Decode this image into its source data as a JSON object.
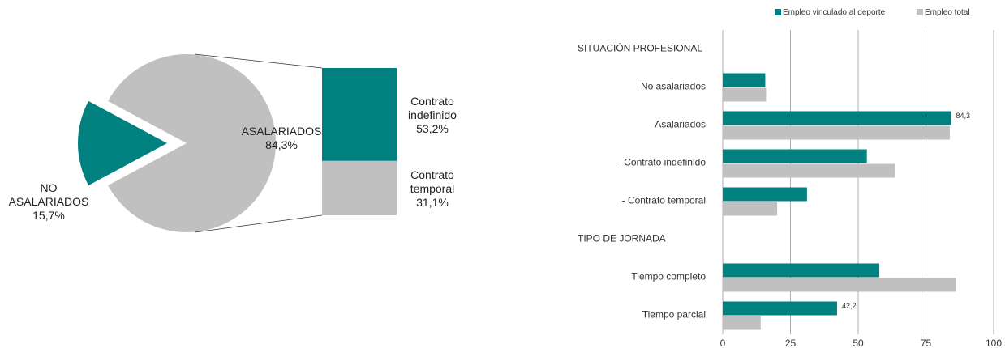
{
  "chart_data": [
    {
      "type": "pie",
      "categories": [
        "NO ASALARIADOS",
        "ASALARIADOS"
      ],
      "values": [
        15.7,
        84.3
      ],
      "value_labels": [
        "15,7%",
        "84,3%"
      ],
      "colors": [
        "#00807f",
        "#c0c0c0"
      ],
      "breakdown": {
        "categories": [
          "Contrato indefinido",
          "Contrato temporal"
        ],
        "values": [
          53.2,
          31.1
        ],
        "value_labels": [
          "53,2%",
          "31,1%"
        ],
        "colors": [
          "#00807f",
          "#c0c0c0"
        ]
      }
    },
    {
      "type": "hbar",
      "categories": [
        "SITUACIÓN PROFESIONAL",
        "No asalariados",
        "Asalariados",
        "- Contrato indefinido",
        "- Contrato temporal",
        "TIPO DE JORNADA",
        "Tiempo completo",
        "Tiempo parcial"
      ],
      "series": [
        {
          "name": "Empleo vinculado al deporte",
          "color": "#00807f",
          "values": [
            null,
            15.7,
            84.3,
            53.2,
            31.1,
            null,
            57.8,
            42.2
          ],
          "value_labels": [
            null,
            null,
            "84,3",
            null,
            null,
            null,
            null,
            "42,2"
          ]
        },
        {
          "name": "Empleo total",
          "color": "#c0c0c0",
          "values": [
            null,
            16,
            83.8,
            63.7,
            20.1,
            null,
            86,
            14
          ]
        }
      ],
      "xlim": [
        0,
        100
      ],
      "xticks": [
        0,
        25,
        50,
        75,
        100
      ],
      "grid": true,
      "legend": "top"
    }
  ]
}
